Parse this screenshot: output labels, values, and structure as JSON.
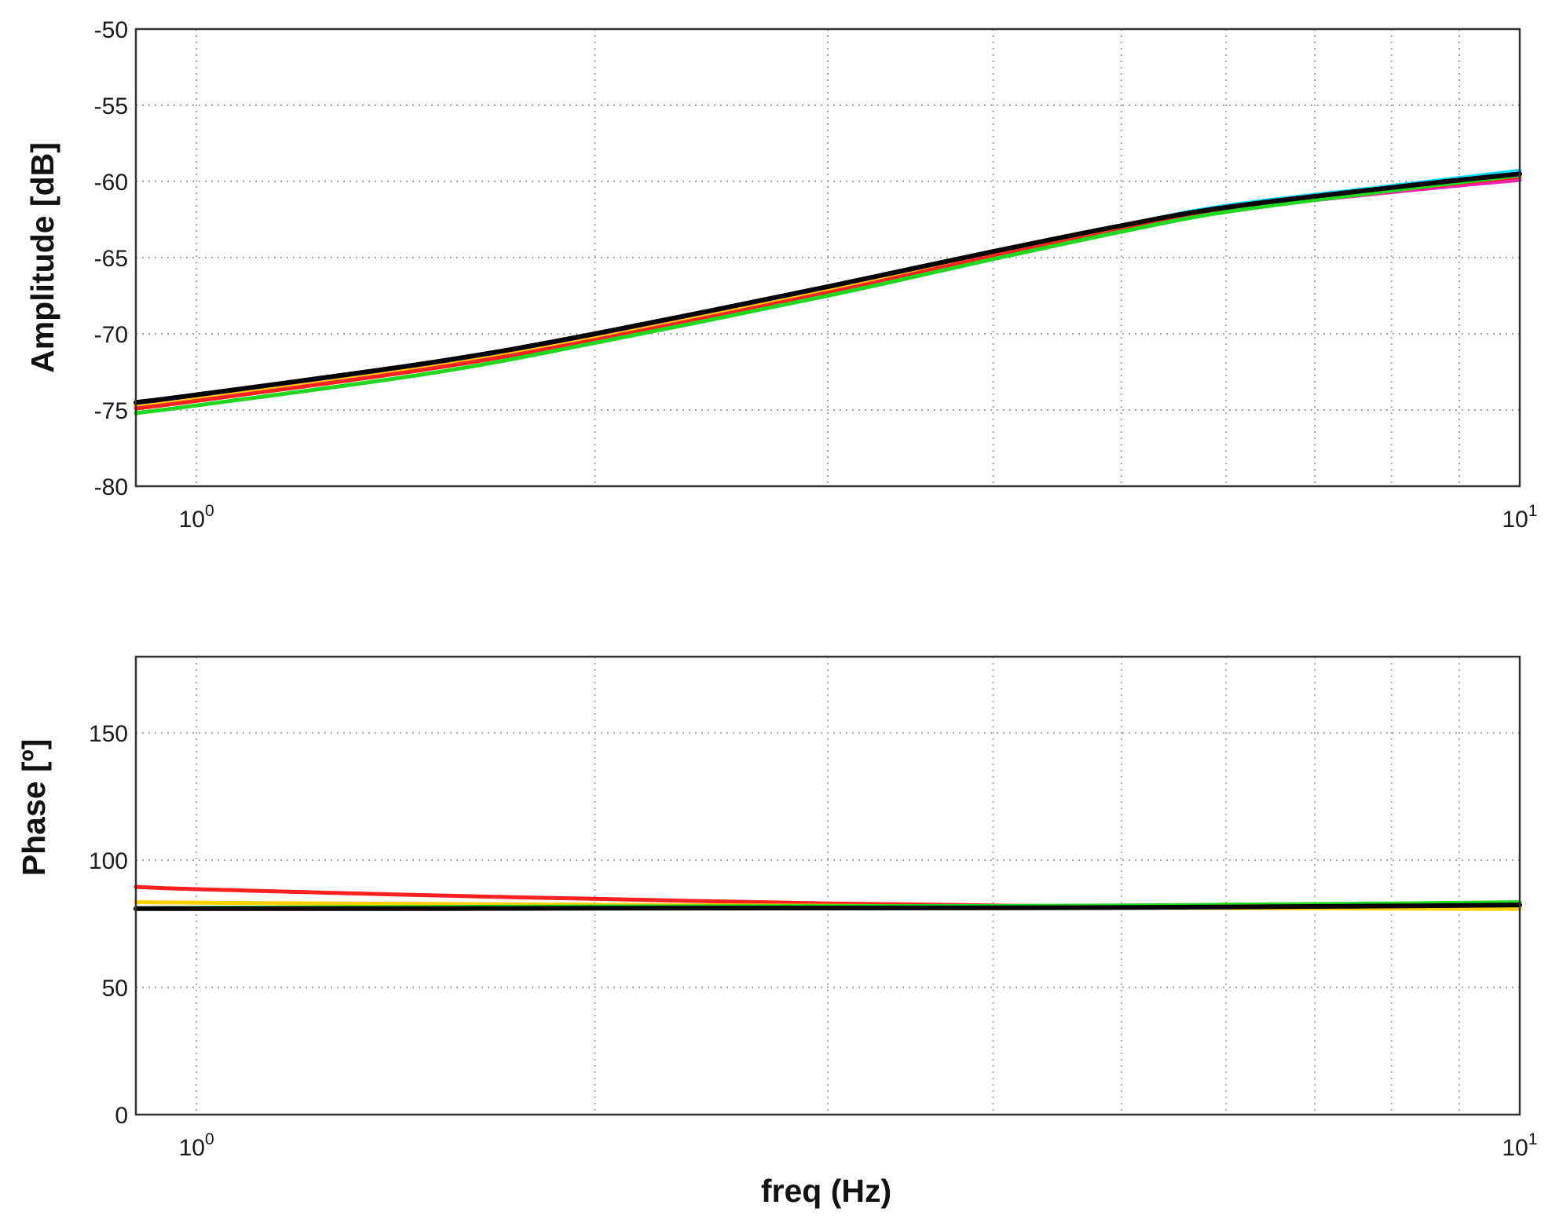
{
  "chart_data": [
    {
      "type": "line",
      "ylabel": "Amplitude [dB]",
      "xlabel": "",
      "xscale": "log",
      "xlim": [
        0.9,
        10
      ],
      "ylim": [
        -80,
        -50
      ],
      "grid": true,
      "yticks": [
        "-50",
        "-55",
        "-60",
        "-65",
        "-70",
        "-75",
        "-80"
      ],
      "xticks": [
        {
          "value": 1,
          "base": "10",
          "exp": "0"
        },
        {
          "value": 10,
          "base": "10",
          "exp": "1"
        }
      ],
      "series": [
        {
          "color": "#00d8ff",
          "x": [
            0.9,
            1,
            1.5,
            2,
            3,
            4,
            5,
            6,
            8,
            10
          ],
          "y": [
            -74.6,
            -74.1,
            -72.0,
            -70.1,
            -67.0,
            -64.6,
            -62.9,
            -61.6,
            -60.3,
            -59.3
          ]
        },
        {
          "color": "#ff1fb0",
          "x": [
            0.9,
            1,
            1.5,
            2,
            3,
            4,
            5,
            6,
            8,
            10
          ],
          "y": [
            -74.7,
            -74.2,
            -72.1,
            -70.2,
            -67.1,
            -64.8,
            -63.1,
            -61.9,
            -60.7,
            -59.9
          ]
        },
        {
          "color": "#ffd000",
          "x": [
            0.9,
            1,
            1.5,
            2,
            3,
            4,
            5,
            6,
            8,
            10
          ],
          "y": [
            -74.8,
            -74.3,
            -72.2,
            -70.3,
            -67.2,
            -64.9,
            -63.1,
            -61.8,
            -60.5,
            -59.6
          ]
        },
        {
          "color": "#ff2020",
          "x": [
            0.9,
            1,
            1.5,
            2,
            3,
            4,
            5,
            6,
            8,
            10
          ],
          "y": [
            -74.9,
            -74.4,
            -72.3,
            -70.4,
            -67.3,
            -64.9,
            -63.2,
            -61.9,
            -60.6,
            -59.7
          ]
        },
        {
          "color": "#1fd81f",
          "x": [
            0.9,
            1,
            1.5,
            2,
            3,
            4,
            5,
            6,
            8,
            10
          ],
          "y": [
            -75.2,
            -74.7,
            -72.6,
            -70.6,
            -67.5,
            -65.1,
            -63.3,
            -62.0,
            -60.6,
            -59.6
          ]
        },
        {
          "color": "#000000",
          "x": [
            0.9,
            1,
            1.5,
            2,
            3,
            4,
            5,
            6,
            8,
            10
          ],
          "y": [
            -74.5,
            -74.0,
            -71.9,
            -70.0,
            -66.9,
            -64.6,
            -62.9,
            -61.7,
            -60.4,
            -59.5
          ]
        }
      ]
    },
    {
      "type": "line",
      "ylabel": "Phase [º]",
      "xlabel": "freq (Hz)",
      "xscale": "log",
      "xlim": [
        0.9,
        10
      ],
      "ylim": [
        0,
        180
      ],
      "grid": true,
      "yticks": [
        "150",
        "100",
        "50",
        "0"
      ],
      "xticks": [
        {
          "value": 1,
          "base": "10",
          "exp": "0"
        },
        {
          "value": 10,
          "base": "10",
          "exp": "1"
        }
      ],
      "series": [
        {
          "color": "#ff2020",
          "x": [
            0.9,
            1,
            1.5,
            2,
            3,
            4,
            5,
            6,
            8,
            10
          ],
          "y": [
            89.5,
            88.6,
            86.2,
            84.8,
            83.0,
            82.2,
            81.7,
            81.4,
            81.2,
            81.0
          ]
        },
        {
          "color": "#ffd000",
          "x": [
            0.9,
            1,
            1.5,
            2,
            3,
            4,
            5,
            6,
            8,
            10
          ],
          "y": [
            83.5,
            83.3,
            82.8,
            82.5,
            82.1,
            81.7,
            81.4,
            81.2,
            81.0,
            80.8
          ]
        },
        {
          "color": "#1fd81f",
          "x": [
            0.9,
            1,
            1.5,
            2,
            3,
            4,
            5,
            6,
            8,
            10
          ],
          "y": [
            81.2,
            81.3,
            81.6,
            81.8,
            81.9,
            82.0,
            82.2,
            82.5,
            83.0,
            83.5
          ]
        },
        {
          "color": "#000000",
          "x": [
            0.9,
            1,
            1.5,
            2,
            3,
            4,
            5,
            6,
            8,
            10
          ],
          "y": [
            81.0,
            81.0,
            81.0,
            81.1,
            81.2,
            81.3,
            81.4,
            81.6,
            82.0,
            82.4
          ]
        }
      ]
    }
  ]
}
